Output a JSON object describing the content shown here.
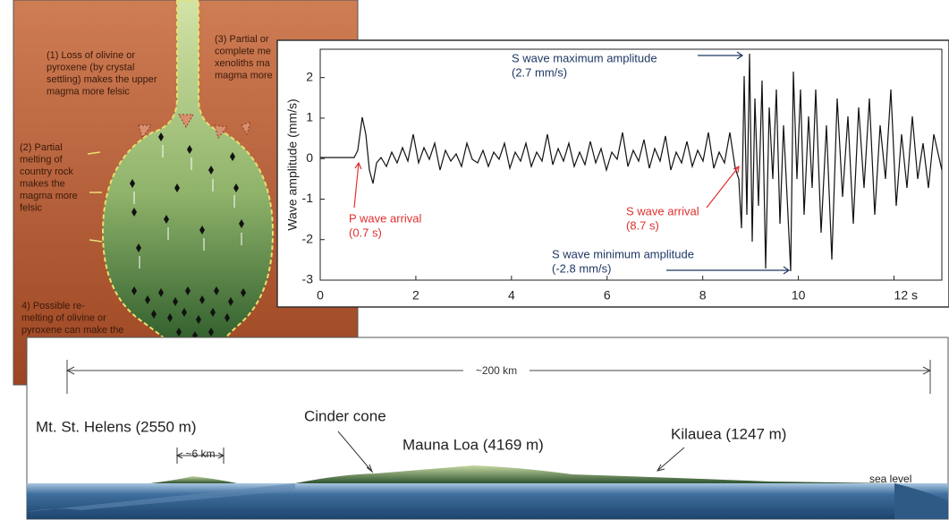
{
  "magma": {
    "notes": [
      {
        "lines": [
          "(1) Loss of olivine or",
          "pyroxene (by crystal",
          "settling) makes the upper",
          "magma more felsic"
        ]
      },
      {
        "lines": [
          "(3) Partial or",
          "complete me",
          "xenoliths ma",
          "magma more"
        ]
      },
      {
        "lines": [
          "(2) Partial",
          "melting of",
          "country rock",
          "makes the",
          "magma more",
          "felsic"
        ]
      },
      {
        "lines": [
          "4) Possible re-",
          "melting of olivine or",
          "pyroxene can make the"
        ]
      }
    ]
  },
  "seismogram": {
    "ylabel": "Wave amplitude (mm/s)",
    "xlim": [
      0,
      13
    ],
    "ylim": [
      -3,
      2.7
    ],
    "xticks": [
      0,
      2,
      4,
      6,
      8,
      10,
      {
        "value": 12,
        "label": "12 s"
      }
    ],
    "yticks": [
      2,
      1,
      0,
      -1,
      -2,
      -3
    ],
    "annotations": [
      {
        "lines": [
          "S wave maximum amplitude",
          "(2.7 mm/s)"
        ],
        "color": "#1f3864"
      },
      {
        "lines": [
          "P wave arrival",
          "(0.7 s)"
        ],
        "color": "#e03030"
      },
      {
        "lines": [
          "S wave arrival",
          "(8.7 s)"
        ],
        "color": "#e03030"
      },
      {
        "lines": [
          "S wave minimum amplitude",
          "(-2.8 mm/s)"
        ],
        "color": "#1f3864"
      }
    ]
  },
  "profile": {
    "distance": "~200 km",
    "labels": [
      "Mt. St. Helens (2550 m)",
      "~6 km",
      "Cinder cone",
      "Mauna Loa (4169 m)",
      "Kilauea (1247 m)",
      "sea level"
    ]
  }
}
